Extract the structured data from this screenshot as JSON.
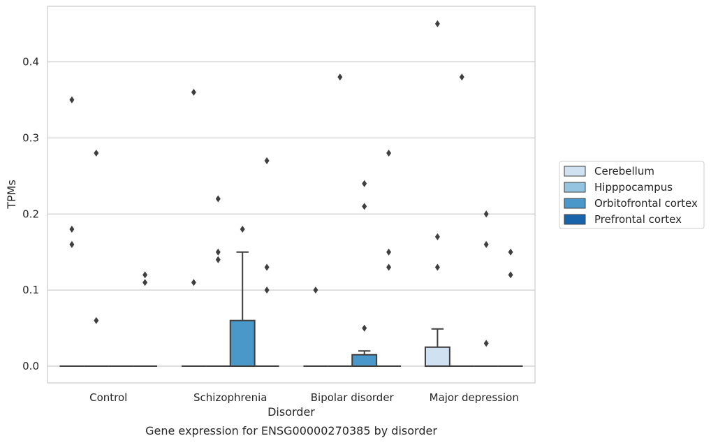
{
  "chart_data": {
    "type": "boxplot",
    "xlabel": "Disorder",
    "ylabel": "TPMs",
    "caption": "Gene expression for ENSG00000270385 by disorder",
    "categories": [
      "Control",
      "Schizophrenia",
      "Bipolar disorder",
      "Major depression"
    ],
    "ylim": [
      -0.022,
      0.473
    ],
    "yticks": [
      0.0,
      0.1,
      0.2,
      0.3,
      0.4
    ],
    "ytick_labels": [
      "0.0",
      "0.1",
      "0.2",
      "0.3",
      "0.4"
    ],
    "grid": "horizontal",
    "legend_position": "right",
    "series": [
      {
        "name": "Cerebellum",
        "color": "#d0e1f2",
        "boxes": [
          {
            "q1": 0,
            "median": 0,
            "q3": 0,
            "whisker_low": 0,
            "whisker_high": 0,
            "outliers": [
              0.35,
              0.18,
              0.16
            ]
          },
          {
            "q1": 0,
            "median": 0,
            "q3": 0,
            "whisker_low": 0,
            "whisker_high": 0,
            "outliers": [
              0.36,
              0.11
            ]
          },
          {
            "q1": 0,
            "median": 0,
            "q3": 0,
            "whisker_low": 0,
            "whisker_high": 0,
            "outliers": [
              0.1
            ]
          },
          {
            "q1": 0,
            "median": 0,
            "q3": 0.025,
            "whisker_low": 0,
            "whisker_high": 0.049,
            "outliers": [
              0.45,
              0.17,
              0.13
            ]
          }
        ]
      },
      {
        "name": "Hipppocampus",
        "color": "#94c4df",
        "boxes": [
          {
            "q1": 0,
            "median": 0,
            "q3": 0,
            "whisker_low": 0,
            "whisker_high": 0,
            "outliers": [
              0.28,
              0.06
            ]
          },
          {
            "q1": 0,
            "median": 0,
            "q3": 0,
            "whisker_low": 0,
            "whisker_high": 0,
            "outliers": [
              0.22,
              0.15,
              0.14
            ]
          },
          {
            "q1": 0,
            "median": 0,
            "q3": 0,
            "whisker_low": 0,
            "whisker_high": 0,
            "outliers": [
              0.38
            ]
          },
          {
            "q1": 0,
            "median": 0,
            "q3": 0,
            "whisker_low": 0,
            "whisker_high": 0,
            "outliers": [
              0.38
            ]
          }
        ]
      },
      {
        "name": "Orbitofrontal cortex",
        "color": "#4a98c9",
        "boxes": [
          {
            "q1": 0,
            "median": 0,
            "q3": 0,
            "whisker_low": 0,
            "whisker_high": 0,
            "outliers": []
          },
          {
            "q1": 0,
            "median": 0,
            "q3": 0.06,
            "whisker_low": 0,
            "whisker_high": 0.15,
            "outliers": [
              0.18
            ]
          },
          {
            "q1": 0,
            "median": 0,
            "q3": 0.015,
            "whisker_low": 0,
            "whisker_high": 0.02,
            "outliers": [
              0.24,
              0.21,
              0.05
            ]
          },
          {
            "q1": 0,
            "median": 0,
            "q3": 0,
            "whisker_low": 0,
            "whisker_high": 0,
            "outliers": [
              0.2,
              0.16,
              0.03
            ]
          }
        ]
      },
      {
        "name": "Prefrontal cortex",
        "color": "#1764ab",
        "boxes": [
          {
            "q1": 0,
            "median": 0,
            "q3": 0,
            "whisker_low": 0,
            "whisker_high": 0,
            "outliers": [
              0.12,
              0.11
            ]
          },
          {
            "q1": 0,
            "median": 0,
            "q3": 0,
            "whisker_low": 0,
            "whisker_high": 0,
            "outliers": [
              0.27,
              0.13,
              0.1
            ]
          },
          {
            "q1": 0,
            "median": 0,
            "q3": 0,
            "whisker_low": 0,
            "whisker_high": 0,
            "outliers": [
              0.28,
              0.15,
              0.13
            ]
          },
          {
            "q1": 0,
            "median": 0,
            "q3": 0,
            "whisker_low": 0,
            "whisker_high": 0,
            "outliers": [
              0.15,
              0.12
            ]
          }
        ]
      }
    ]
  }
}
